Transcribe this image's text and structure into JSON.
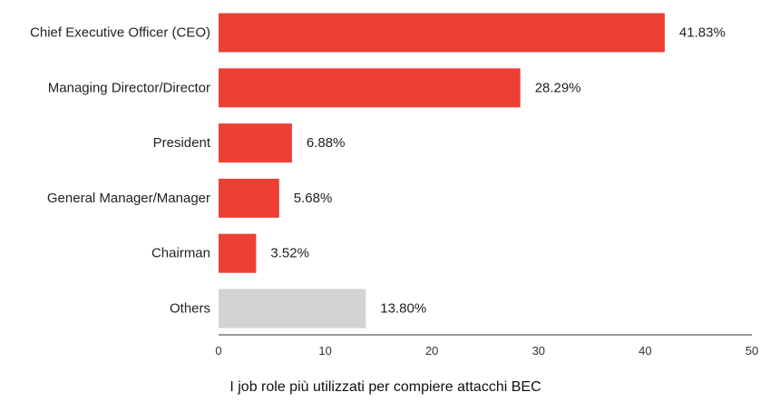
{
  "chart_data": {
    "type": "bar",
    "orientation": "horizontal",
    "categories": [
      "Chief Executive Officer (CEO)",
      "Managing Director/Director",
      "President",
      "General Manager/Manager",
      "Chairman",
      "Others"
    ],
    "values": [
      41.83,
      28.29,
      6.88,
      5.68,
      3.52,
      13.8
    ],
    "value_labels": [
      "41.83%",
      "28.29%",
      "6.88%",
      "5.68%",
      "3.52%",
      "13.80%"
    ],
    "bar_colors": [
      "#ec4035",
      "#ec4035",
      "#ec4035",
      "#ec4035",
      "#ec4035",
      "#d3d3d5"
    ],
    "xlim": [
      0,
      50
    ],
    "xticks": [
      0,
      10,
      20,
      30,
      40,
      50
    ],
    "xtick_labels": [
      "0",
      "10",
      "20",
      "30",
      "40",
      "50"
    ],
    "title": "I job role più utilizzati per compiere attacchi BEC",
    "xlabel": "",
    "ylabel": "",
    "grid": false,
    "legend": "none"
  }
}
